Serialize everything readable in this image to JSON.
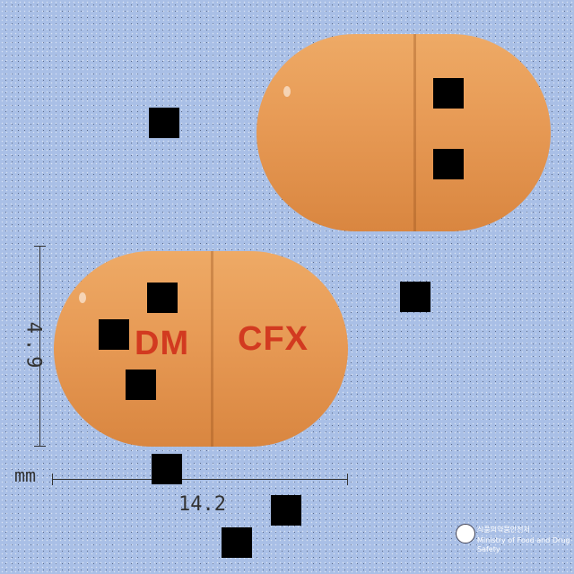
{
  "measurements": {
    "length_label": "14.2",
    "width_label": "4.9",
    "unit_label": "mm"
  },
  "capsule_front": {
    "imprint_left": "DM",
    "imprint_right": "CFX"
  },
  "colors": {
    "background": "#a9bfe6",
    "capsule": "#e89c58",
    "imprint": "#d23a20"
  },
  "watermark": {
    "line1": "식품의약품안전처",
    "line2": "Ministry of Food and Drug Safety"
  }
}
